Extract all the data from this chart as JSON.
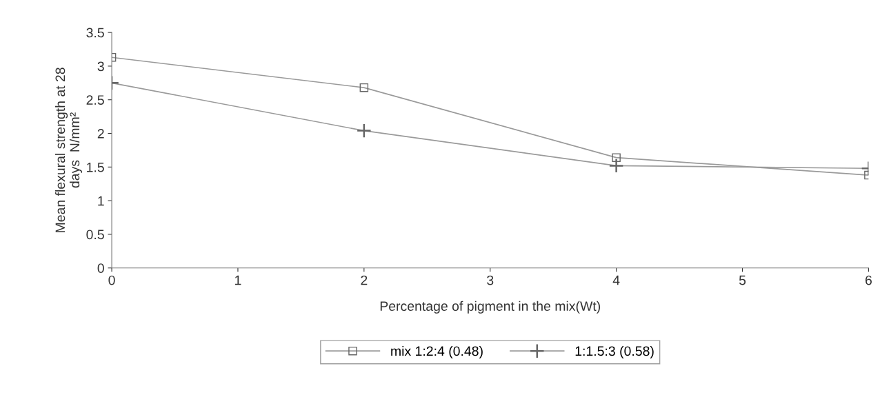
{
  "chart_data": {
    "type": "line",
    "xlabel": "Percentage of pigment in the mix(Wt)",
    "ylabel": "Mean flexural strength at 28\ndays  N/mm²",
    "x": [
      0,
      2,
      4,
      6
    ],
    "series": [
      {
        "name": "mix 1:2:4 (0.48)",
        "color": "#9a9a9a",
        "marker": "square",
        "values": [
          3.13,
          2.68,
          1.64,
          1.38
        ]
      },
      {
        "name": "1:1.5:3 (0.58)",
        "color": "#9a9a9a",
        "marker": "cross",
        "values": [
          2.75,
          2.04,
          1.52,
          1.48
        ]
      }
    ],
    "xlim": [
      0,
      6
    ],
    "xticks": [
      0,
      1,
      2,
      3,
      4,
      5,
      6
    ],
    "ylim": [
      0,
      3.5
    ],
    "yticks": [
      0,
      0.5,
      1,
      1.5,
      2,
      2.5,
      3,
      3.5
    ],
    "grid": false,
    "legend": "bottom",
    "line_style": "solid"
  }
}
